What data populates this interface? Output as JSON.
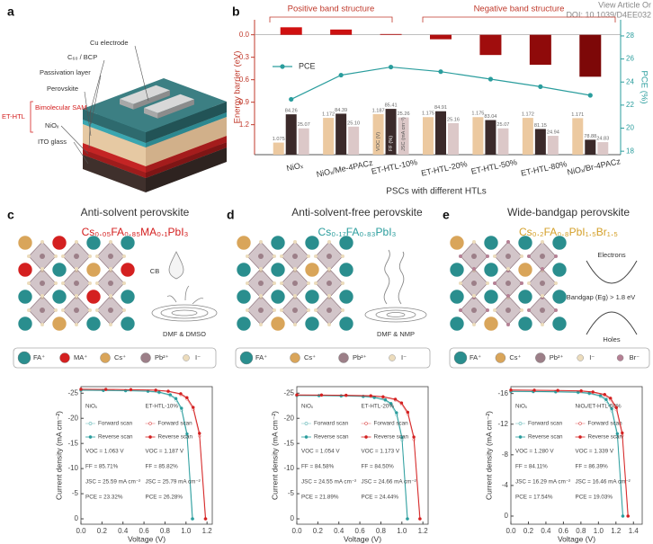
{
  "watermark": {
    "line1": "View Article Or",
    "line2": "DOI: 10.1039/D4EE032"
  },
  "panel_labels": [
    "a",
    "b",
    "c",
    "d",
    "e"
  ],
  "device": {
    "layers": [
      "Cu electrode",
      "C₆₀ / BCP",
      "Passivation layer",
      "Perovskite",
      "Bimolecular SAM",
      "NiOₓ",
      "ITO glass"
    ],
    "bracket": "ET-HTL"
  },
  "perovskites": [
    {
      "title": "Anti-solvent perovskite",
      "formula": "Cs₀.₀₅FA₀.₈₅MA₀.₁PbI₃",
      "formula_color": "#d42020",
      "labels": [
        "CB",
        "DMF & DMSO"
      ],
      "legend": [
        {
          "label": "FA⁺",
          "color": "#2a8e8e"
        },
        {
          "label": "MA⁺",
          "color": "#d42020"
        },
        {
          "label": "Cs⁺",
          "color": "#d9a55a"
        },
        {
          "label": "Pb²⁺",
          "color": "#9c7f88"
        },
        {
          "label": "I⁻",
          "color": "#ecdcbc"
        }
      ]
    },
    {
      "title": "Anti-solvent-free perovskite",
      "formula": "Cs₀.₁₇FA₀.₈₃PbI₃",
      "formula_color": "#2a9d9d",
      "labels": [
        "DMF & NMP"
      ],
      "legend": [
        {
          "label": "FA⁺",
          "color": "#2a8e8e"
        },
        {
          "label": "Cs⁺",
          "color": "#d9a55a"
        },
        {
          "label": "Pb²⁺",
          "color": "#9c7f88"
        },
        {
          "label": "I⁻",
          "color": "#ecdcbc"
        }
      ]
    },
    {
      "title": "Wide-bandgap perovskite",
      "formula": "Cs₀.₂FA₀.₈PbI₁.₅Br₁.₅",
      "formula_color": "#d4a02a",
      "labels": [
        "Electrons",
        "Bandgap (Eg) > 1.8 eV",
        "Holes"
      ],
      "legend": [
        {
          "label": "FA⁺",
          "color": "#2a8e8e"
        },
        {
          "label": "Cs⁺",
          "color": "#d9a55a"
        },
        {
          "label": "Pb²⁺",
          "color": "#9c7f88"
        },
        {
          "label": "I⁻",
          "color": "#ecdcbc"
        },
        {
          "label": "Br⁻",
          "color": "#b58094"
        }
      ]
    }
  ],
  "chart_data": [
    {
      "type": "combo",
      "ylabel": "Energy barrier (eV)",
      "y2label": "PCE (%)",
      "xlabel": "PSCs with different HTLs",
      "categories": [
        "NiOₓ",
        "NiOₓ/Me-4PACz",
        "ET-HTL-10%",
        "ET-HTL-20%",
        "ET-HTL-50%",
        "ET-HTL-80%",
        "NiOₓ/Br-4PACz"
      ],
      "values": [
        -0.1,
        -0.07,
        -0.01,
        0.06,
        0.27,
        0.4,
        0.56
      ],
      "colors": [
        "#d01010",
        "#cc1111",
        "#c41212",
        "#b01010",
        "#a00d0d",
        "#8f0a0a",
        "#7d0808"
      ],
      "series": [
        {
          "name": "PCE",
          "color": "#2a9d9d",
          "axis": "y2",
          "values": [
            22.5,
            24.6,
            25.3,
            24.9,
            24.25,
            23.6,
            22.85
          ]
        }
      ],
      "groups": [
        {
          "label": "VOC (V)",
          "color": "#ecc9a0",
          "values": [
            1.075,
            1.172,
            1.187,
            1.175,
            1.175,
            1.172,
            1.171
          ]
        },
        {
          "label": "FF (%)",
          "color": "#3b2a2a",
          "values": [
            84.26,
            84.39,
            85.41,
            84.91,
            83.04,
            81.15,
            78.88
          ]
        },
        {
          "label": "JSC (mA cm⁻²)",
          "color": "#dcc8c8",
          "values": [
            25.07,
            25.1,
            25.26,
            25.16,
            25.07,
            24.94,
            24.83
          ],
          "value_labels": [
            "25.07",
            "25.10",
            "25.26",
            "25.16",
            "25.07",
            "24.94",
            "24.83"
          ]
        }
      ],
      "annotations": [
        "Positive band structure",
        "Negative band structure"
      ],
      "ylim": [
        1.6,
        -0.2
      ],
      "yticks": [
        {
          "value": 0,
          "label": "0.0"
        },
        0.3,
        0.6,
        0.9,
        1.2
      ],
      "y2lim": [
        17.7,
        29.4
      ],
      "y2ticks": [
        18,
        20,
        22,
        24,
        26,
        28
      ]
    },
    {
      "type": "line",
      "xlabel": "Voltage (V)",
      "ylabel": "Current density (mA cm⁻²)",
      "xlim": [
        0,
        1.25
      ],
      "xticks": [
        {
          "value": 0,
          "label": "0.0"
        },
        0.2,
        0.4,
        0.6,
        0.8,
        {
          "value": 1,
          "label": "1.0"
        },
        1.2
      ],
      "ylim": [
        1.07,
        -26.3
      ],
      "yticks": [
        -25,
        -20,
        -15,
        -10,
        -5,
        0
      ],
      "devices": [
        {
          "label": "NiOₓ",
          "color": "#2a9d9d",
          "metrics": [
            "VOC = 1.063 V",
            "FF = 85.71%",
            "JSC = 25.59 mA cm⁻²",
            "PCE = 23.32%"
          ],
          "series": [
            {
              "name": "Forward scan",
              "x": [
                0,
                0.213,
                0.425,
                0.638,
                0.744,
                0.85,
                0.904,
                0.957,
                1.01,
                1.058
              ],
              "values": [
                -25.55,
                -25.52,
                -25.46,
                -25.34,
                -25.11,
                -24.52,
                -23.65,
                -21.6,
                -16.3,
                0
              ]
            },
            {
              "name": "Reverse scan",
              "x": [
                0,
                0.213,
                0.425,
                0.638,
                0.744,
                0.85,
                0.904,
                0.957,
                1.01,
                1.063
              ],
              "values": [
                -25.59,
                -25.56,
                -25.51,
                -25.41,
                -25.21,
                -24.69,
                -23.93,
                -22.01,
                -16.89,
                0
              ]
            }
          ]
        },
        {
          "label": "ET-HTL-10%",
          "color": "#d42020",
          "metrics": [
            "VOC = 1.187 V",
            "FF = 85.82%",
            "JSC = 25.79 mA cm⁻²",
            "PCE = 26.28%"
          ],
          "series": [
            {
              "name": "Forward scan",
              "x": [
                0,
                0.237,
                0.475,
                0.712,
                0.831,
                0.95,
                1.009,
                1.068,
                1.128,
                1.183
              ],
              "values": [
                -25.75,
                -25.72,
                -25.66,
                -25.54,
                -25.3,
                -24.72,
                -23.85,
                -21.8,
                -16.5,
                0
              ]
            },
            {
              "name": "Reverse scan",
              "x": [
                0,
                0.237,
                0.475,
                0.712,
                0.831,
                0.95,
                1.009,
                1.068,
                1.128,
                1.187
              ],
              "values": [
                -25.79,
                -25.76,
                -25.71,
                -25.61,
                -25.4,
                -24.89,
                -24.11,
                -22.18,
                -17.02,
                0
              ]
            }
          ]
        }
      ]
    },
    {
      "type": "line",
      "xlabel": "Voltage (V)",
      "ylabel": "Current density (mA cm⁻²)",
      "xlim": [
        0,
        1.25
      ],
      "xticks": [
        {
          "value": 0,
          "label": "0.0"
        },
        0.2,
        0.4,
        0.6,
        0.8,
        {
          "value": 1,
          "label": "1.0"
        },
        1.2
      ],
      "ylim": [
        1.07,
        -26.3
      ],
      "yticks": [
        -25,
        -20,
        -15,
        -10,
        -5,
        0
      ],
      "devices": [
        {
          "label": "NiOₓ",
          "color": "#2a9d9d",
          "metrics": [
            "VOC = 1.054 V",
            "FF = 84.58%",
            "JSC = 24.55 mA cm⁻²",
            "PCE = 21.89%"
          ],
          "series": [
            {
              "name": "Forward scan",
              "x": [
                0,
                0.211,
                0.422,
                0.632,
                0.738,
                0.843,
                0.896,
                0.949,
                1.001,
                1.05
              ],
              "values": [
                -24.5,
                -24.47,
                -24.41,
                -24.3,
                -24.08,
                -23.52,
                -22.7,
                -20.7,
                -15.7,
                0
              ]
            },
            {
              "name": "Reverse scan",
              "x": [
                0,
                0.211,
                0.422,
                0.632,
                0.738,
                0.843,
                0.896,
                0.949,
                1.001,
                1.054
              ],
              "values": [
                -24.55,
                -24.53,
                -24.48,
                -24.38,
                -24.18,
                -23.69,
                -22.95,
                -21.11,
                -16.2,
                0
              ]
            }
          ]
        },
        {
          "label": "ET-HTL-20%",
          "color": "#d42020",
          "metrics": [
            "VOC = 1.173 V",
            "FF = 84.50%",
            "JSC = 24.66 mA cm⁻²",
            "PCE = 24.44%"
          ],
          "series": [
            {
              "name": "Forward scan",
              "x": [
                0,
                0.235,
                0.469,
                0.704,
                0.821,
                0.938,
                0.997,
                1.056,
                1.114,
                1.169
              ],
              "values": [
                -24.62,
                -24.59,
                -24.53,
                -24.42,
                -24.2,
                -23.64,
                -22.82,
                -20.85,
                -15.8,
                0
              ]
            },
            {
              "name": "Reverse scan",
              "x": [
                0,
                0.235,
                0.469,
                0.704,
                0.821,
                0.938,
                0.997,
                1.056,
                1.114,
                1.173
              ],
              "values": [
                -24.66,
                -24.64,
                -24.59,
                -24.49,
                -24.29,
                -23.8,
                -23.06,
                -21.21,
                -16.28,
                0
              ]
            }
          ]
        }
      ]
    },
    {
      "type": "line",
      "xlabel": "Voltage (V)",
      "ylabel": "Current density (mA cm⁻²)",
      "xlim": [
        0,
        1.5
      ],
      "xticks": [
        {
          "value": 0,
          "label": "0.0"
        },
        0.2,
        0.4,
        0.6,
        0.8,
        {
          "value": 1,
          "label": "1.0"
        },
        1.2,
        1.4
      ],
      "ylim": [
        1.06,
        -16.9
      ],
      "yticks": [
        -16,
        -12,
        -8,
        -4,
        0
      ],
      "devices": [
        {
          "label": "NiOₓ",
          "color": "#2a9d9d",
          "metrics": [
            "VOC = 1.280 V",
            "FF = 84.11%",
            "JSC = 16.29 mA cm⁻²",
            "PCE = 17.54%"
          ],
          "series": [
            {
              "name": "Forward scan",
              "x": [
                0,
                0.256,
                0.512,
                0.768,
                0.896,
                1.024,
                1.088,
                1.152,
                1.216,
                1.276
              ],
              "values": [
                -16.25,
                -16.23,
                -16.19,
                -16.12,
                -15.98,
                -15.6,
                -15.05,
                -13.75,
                -10.4,
                0
              ]
            },
            {
              "name": "Reverse scan",
              "x": [
                0,
                0.256,
                0.512,
                0.768,
                0.896,
                1.024,
                1.088,
                1.152,
                1.216,
                1.28
              ],
              "values": [
                -16.29,
                -16.27,
                -16.24,
                -16.18,
                -16.05,
                -15.72,
                -15.23,
                -14.01,
                -10.75,
                0
              ]
            }
          ]
        },
        {
          "label": "NiOₓ/ET-HTL-50%",
          "color": "#d42020",
          "metrics": [
            "VOC = 1.339 V",
            "FF = 86.39%",
            "JSC = 16.46 mA cm⁻²",
            "PCE = 19.03%"
          ],
          "series": [
            {
              "name": "Forward scan",
              "x": [
                0,
                0.268,
                0.536,
                0.803,
                0.937,
                1.071,
                1.138,
                1.205,
                1.272,
                1.335
              ],
              "values": [
                -16.42,
                -16.4,
                -16.36,
                -16.29,
                -16.14,
                -15.76,
                -15.2,
                -13.9,
                -10.5,
                0
              ]
            },
            {
              "name": "Reverse scan",
              "x": [
                0,
                0.268,
                0.536,
                0.803,
                0.937,
                1.071,
                1.138,
                1.205,
                1.272,
                1.339
              ],
              "values": [
                -16.46,
                -16.44,
                -16.41,
                -16.35,
                -16.21,
                -15.88,
                -15.39,
                -14.16,
                -10.86,
                0
              ]
            }
          ]
        }
      ]
    }
  ]
}
